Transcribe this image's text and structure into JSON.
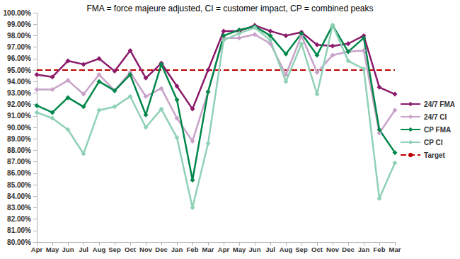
{
  "chart_data": {
    "type": "line",
    "title": "FMA = force majeure adjusted, CI = customer impact, CP = combined peaks",
    "categories": [
      "Apr",
      "May",
      "Jun",
      "Jul",
      "Aug",
      "Sep",
      "Oct",
      "Nov",
      "Dec",
      "Jan",
      "Feb",
      "Mar",
      "Apr",
      "May",
      "Jun",
      "Jul",
      "Aug",
      "Sep",
      "Oct",
      "Nov",
      "Dec",
      "Jan",
      "Feb",
      "Mar"
    ],
    "series": [
      {
        "name": "24/7 FMA",
        "color": "#8b1a6b",
        "marker": "diamond",
        "line_style": "solid",
        "values": [
          94.6,
          94.4,
          95.8,
          95.5,
          96.0,
          94.9,
          96.7,
          94.3,
          95.6,
          93.6,
          91.6,
          95.0,
          98.4,
          98.4,
          98.9,
          98.4,
          98.0,
          98.3,
          97.2,
          97.1,
          97.3,
          98.0,
          93.5,
          92.9
        ]
      },
      {
        "name": "24/7 CI",
        "color": "#c8a2c8",
        "marker": "diamond",
        "line_style": "solid",
        "values": [
          93.3,
          93.3,
          94.1,
          92.9,
          94.6,
          93.2,
          94.8,
          92.7,
          93.4,
          90.8,
          88.8,
          93.1,
          97.8,
          97.8,
          98.1,
          97.3,
          94.6,
          98.0,
          94.8,
          96.3,
          96.6,
          96.7,
          89.5,
          91.5
        ]
      },
      {
        "name": "CP FMA",
        "color": "#00874a",
        "marker": "diamond",
        "line_style": "solid",
        "values": [
          91.9,
          91.3,
          92.6,
          91.8,
          94.0,
          93.2,
          94.6,
          91.1,
          95.5,
          92.4,
          85.4,
          93.1,
          98.0,
          98.5,
          98.8,
          98.0,
          96.4,
          98.2,
          96.3,
          98.9,
          96.6,
          97.8,
          89.8,
          87.8
        ]
      },
      {
        "name": "CP CI",
        "color": "#8fd1b5",
        "marker": "diamond",
        "line_style": "solid",
        "values": [
          91.3,
          90.8,
          89.8,
          87.7,
          91.5,
          91.8,
          92.7,
          90.0,
          91.6,
          89.1,
          83.0,
          88.6,
          97.6,
          98.2,
          98.7,
          97.6,
          94.0,
          97.3,
          92.9,
          98.9,
          95.8,
          95.1,
          83.8,
          86.9
        ]
      },
      {
        "name": "Target",
        "color": "#c00000",
        "marker": "none",
        "line_style": "dashed",
        "values": [
          95,
          95,
          95,
          95,
          95,
          95,
          95,
          95,
          95,
          95,
          95,
          95,
          95,
          95,
          95,
          95,
          95,
          95,
          95,
          95,
          95,
          95,
          95,
          95
        ]
      }
    ],
    "ylim": [
      80,
      100
    ],
    "yticks": [
      {
        "value": 80,
        "label": "80.00%"
      },
      {
        "value": 81,
        "label": "81.00%"
      },
      {
        "value": 82,
        "label": "82.00%"
      },
      {
        "value": 83,
        "label": "83.00%"
      },
      {
        "value": 84,
        "label": "84.00%"
      },
      {
        "value": 85,
        "label": "85.00%"
      },
      {
        "value": 86,
        "label": "86.00%"
      },
      {
        "value": 87,
        "label": "87.00%"
      },
      {
        "value": 88,
        "label": "88.00%"
      },
      {
        "value": 89,
        "label": "89.00%"
      },
      {
        "value": 90,
        "label": "90.00%"
      },
      {
        "value": 91,
        "label": "91.00%"
      },
      {
        "value": 92,
        "label": "92.00%"
      },
      {
        "value": 93,
        "label": "93.00%"
      },
      {
        "value": 94,
        "label": "94.00%"
      },
      {
        "value": 95,
        "label": "95.00%"
      },
      {
        "value": 96,
        "label": "96.00%"
      },
      {
        "value": 97,
        "label": "97.00%"
      },
      {
        "value": 98,
        "label": "98.00%"
      },
      {
        "value": 99,
        "label": "99.00%"
      },
      {
        "value": 100,
        "label": "100.00%"
      }
    ],
    "grid": false,
    "legend": "right"
  }
}
